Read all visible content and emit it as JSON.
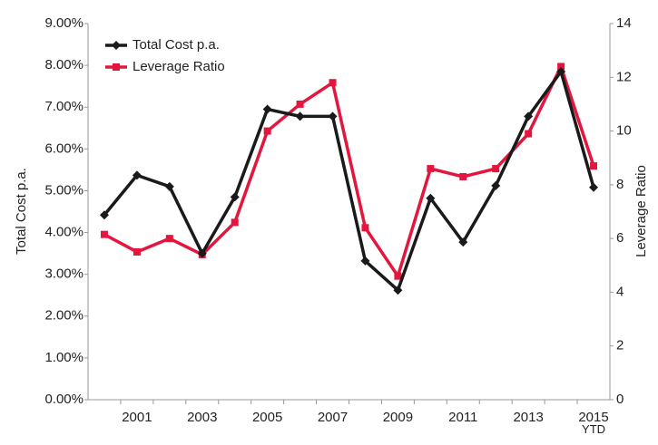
{
  "chart_data": {
    "type": "line",
    "categories": [
      null,
      "2001",
      null,
      "2003",
      null,
      "2005",
      null,
      "2007",
      null,
      "2009",
      null,
      "2011",
      null,
      "2013",
      null,
      "2015\nYTD"
    ],
    "series": [
      {
        "name": "Total Cost p.a.",
        "color": "#1a1a1a",
        "marker": "diamond",
        "axis": "y",
        "values": [
          4.42,
          5.37,
          5.1,
          3.5,
          4.85,
          6.95,
          6.78,
          6.78,
          3.32,
          2.62,
          4.82,
          3.77,
          5.12,
          6.78,
          7.85,
          5.08
        ]
      },
      {
        "name": "Leverage Ratio",
        "color": "#e3173e",
        "marker": "square",
        "axis": "y2",
        "values": [
          6.15,
          5.5,
          6.0,
          5.4,
          6.6,
          10.0,
          11.0,
          11.8,
          6.4,
          4.6,
          8.6,
          8.3,
          8.6,
          9.9,
          12.4,
          8.7
        ]
      }
    ],
    "ylabel": "Total Cost p.a.",
    "y2label": "Leverage Ratio",
    "ylim": [
      0,
      9
    ],
    "yticks": [
      {
        "value": 0,
        "label": "0.00%"
      },
      {
        "value": 1,
        "label": "1.00%"
      },
      {
        "value": 2,
        "label": "2.00%"
      },
      {
        "value": 3,
        "label": "3.00%"
      },
      {
        "value": 4,
        "label": "4.00%"
      },
      {
        "value": 5,
        "label": "5.00%"
      },
      {
        "value": 6,
        "label": "6.00%"
      },
      {
        "value": 7,
        "label": "7.00%"
      },
      {
        "value": 8,
        "label": "8.00%"
      },
      {
        "value": 9,
        "label": "9.00%"
      }
    ],
    "y2lim": [
      0,
      14
    ],
    "y2ticks": [
      0,
      2,
      4,
      6,
      8,
      10,
      12,
      14
    ],
    "legend": "upper left",
    "grid": false
  }
}
